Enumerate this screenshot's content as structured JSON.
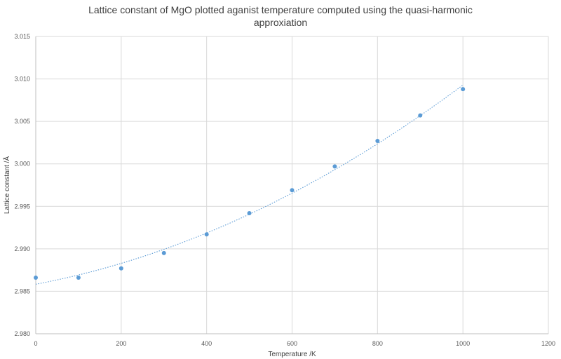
{
  "chart_data": {
    "type": "scatter",
    "title_lines": [
      "Lattice constant of MgO plotted aganist temperature computed using the quasi-harmonic",
      "approxiation"
    ],
    "xlabel": "Temperature /K",
    "ylabel": "Lattice constant /Å",
    "xlim": [
      0,
      1200
    ],
    "ylim": [
      2.98,
      3.015
    ],
    "xticks": [
      0,
      200,
      400,
      600,
      800,
      1000,
      1200
    ],
    "xtick_labels": [
      "0",
      "200",
      "400",
      "600",
      "800",
      "1000",
      "1200"
    ],
    "yticks": [
      2.98,
      2.985,
      2.99,
      2.995,
      3.0,
      3.005,
      3.01,
      3.015
    ],
    "ytick_labels": [
      "2.980",
      "2.985",
      "2.990",
      "2.995",
      "3.000",
      "3.005",
      "3.010",
      "3.015"
    ],
    "grid": true,
    "series": [
      {
        "x": [
          0,
          100,
          200,
          300,
          400,
          500,
          600,
          700,
          800,
          900,
          1000
        ],
        "y": [
          2.9866,
          2.9866,
          2.9877,
          2.9895,
          2.9917,
          2.9942,
          2.9969,
          2.9997,
          3.0027,
          3.0057,
          3.0088
        ],
        "color": "#5b9bd5",
        "marker": "circle"
      }
    ],
    "trendline": {
      "type": "polynomial",
      "order": 2,
      "x_range": [
        0,
        1000
      ],
      "style": "dotted",
      "color": "#5b9bd5"
    }
  }
}
